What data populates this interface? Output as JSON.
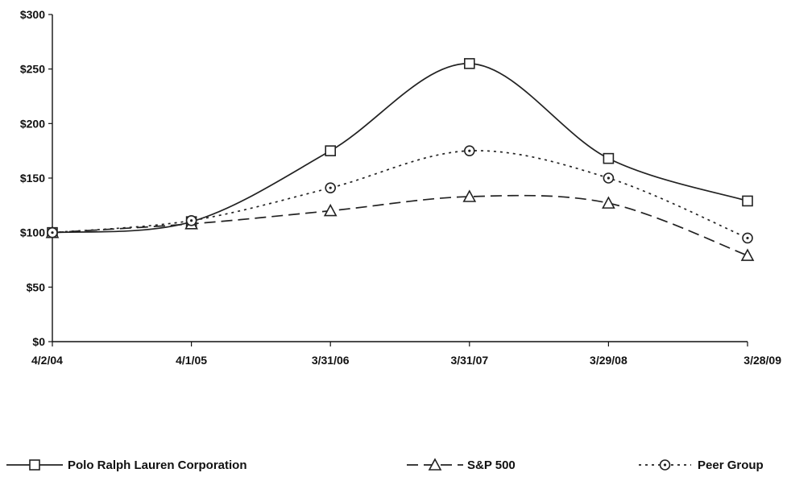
{
  "chart_data": {
    "type": "line",
    "title": "",
    "xlabel": "",
    "ylabel": "",
    "categories": [
      "4/2/04",
      "4/1/05",
      "3/31/06",
      "3/31/07",
      "3/29/08",
      "3/28/09"
    ],
    "ylim": [
      0,
      300
    ],
    "y_ticks": [
      0,
      50,
      100,
      150,
      200,
      250,
      300
    ],
    "y_tick_labels": [
      "$0",
      "$50",
      "$100",
      "$150",
      "$200",
      "$250",
      "$300"
    ],
    "grid": false,
    "legend_position": "bottom",
    "series": [
      {
        "name": "Polo Ralph Lauren Corporation",
        "values": [
          100,
          110,
          175,
          255,
          168,
          129
        ],
        "line_style": "solid",
        "marker": "square",
        "color": "#222222"
      },
      {
        "name": "S&P 500",
        "values": [
          100,
          108,
          120,
          133,
          127,
          79
        ],
        "line_style": "dashed",
        "marker": "triangle",
        "color": "#222222"
      },
      {
        "name": "Peer Group",
        "values": [
          100,
          111,
          141,
          175,
          150,
          95
        ],
        "line_style": "dotted",
        "marker": "circle",
        "color": "#222222"
      }
    ]
  }
}
